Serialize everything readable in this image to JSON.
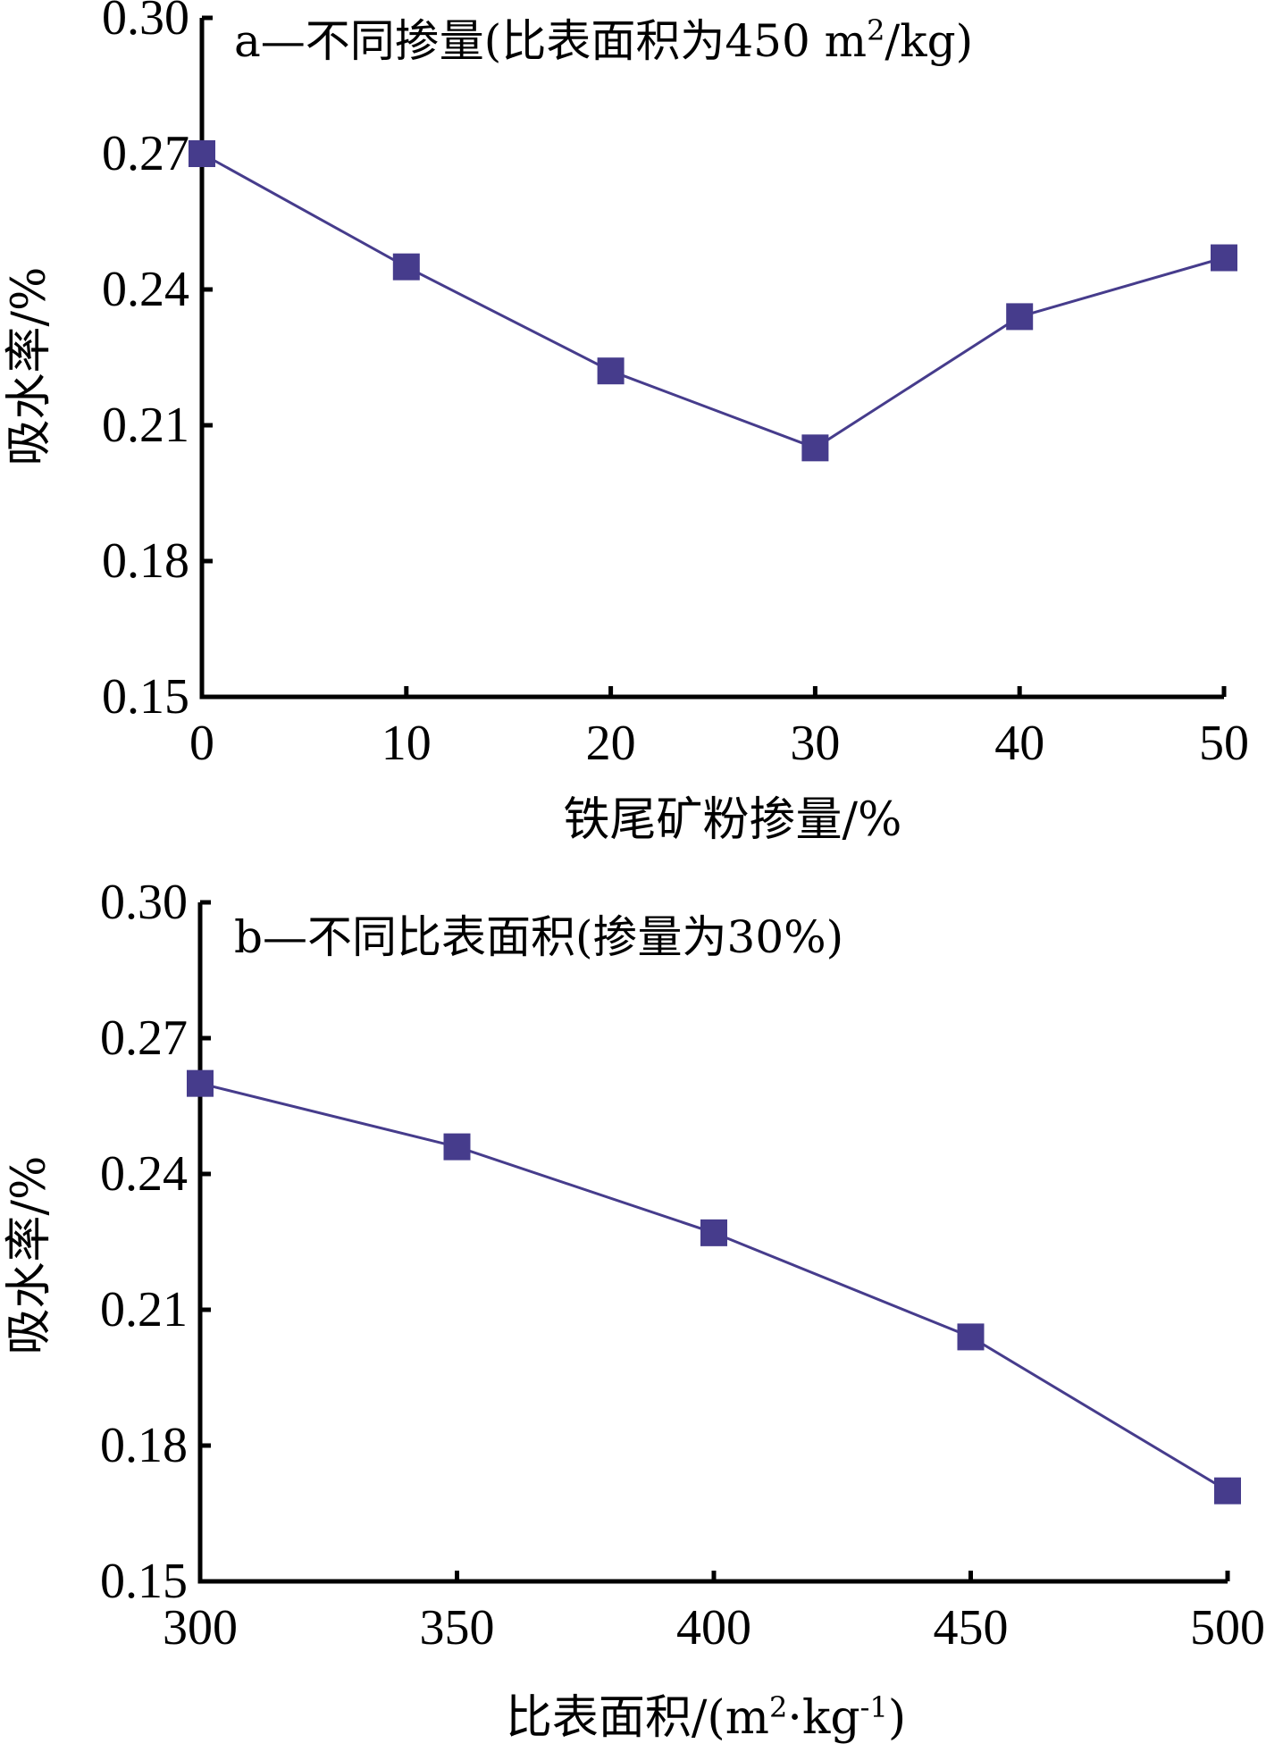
{
  "chart_data": [
    {
      "type": "line",
      "title": "a—不同掺量(比表面积为450 m²/kg)",
      "title_main": "a—不同掺量(比表面积为450 m",
      "title_sup": "2",
      "title_tail": "/kg)",
      "xlabel": "铁尾矿粉掺量/%",
      "ylabel": "吸水率/%",
      "xlim": [
        0,
        50
      ],
      "ylim": [
        0.15,
        0.3
      ],
      "xticks": [
        "0",
        "10",
        "20",
        "30",
        "40",
        "50"
      ],
      "xtick_values": [
        0,
        10,
        20,
        30,
        40,
        50
      ],
      "yticks": [
        "0.15",
        "0.18",
        "0.21",
        "0.24",
        "0.27",
        "0.30"
      ],
      "ytick_values": [
        0.15,
        0.18,
        0.21,
        0.24,
        0.27,
        0.3
      ],
      "series": [
        {
          "x": [
            0,
            10,
            20,
            30,
            40,
            50
          ],
          "values": [
            0.27,
            0.245,
            0.222,
            0.205,
            0.234,
            0.247
          ],
          "marker": "square",
          "color": "#463c8c"
        }
      ]
    },
    {
      "type": "line",
      "title": "b—不同比表面积(掺量为30%)",
      "xlabel": "比表面积/(m²·kg⁻¹)",
      "xlabel_part1": "比表面积/(m",
      "xlabel_sup1": "2",
      "xlabel_part2": "·kg",
      "xlabel_sup2": "-1",
      "xlabel_part3": ")",
      "ylabel": "吸水率/%",
      "xlim": [
        300,
        500
      ],
      "ylim": [
        0.15,
        0.3
      ],
      "xticks": [
        "300",
        "350",
        "400",
        "450",
        "500"
      ],
      "xtick_values": [
        300,
        350,
        400,
        450,
        500
      ],
      "yticks": [
        "0.15",
        "0.18",
        "0.21",
        "0.24",
        "0.27",
        "0.30"
      ],
      "ytick_values": [
        0.15,
        0.18,
        0.21,
        0.24,
        0.27,
        0.3
      ],
      "series": [
        {
          "x": [
            300,
            350,
            400,
            450,
            500
          ],
          "values": [
            0.26,
            0.246,
            0.227,
            0.204,
            0.17
          ],
          "marker": "square",
          "color": "#463c8c"
        }
      ]
    }
  ]
}
